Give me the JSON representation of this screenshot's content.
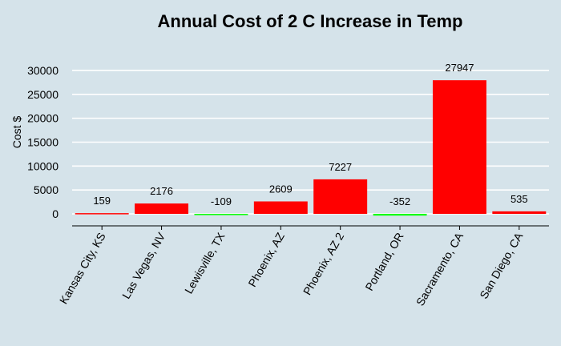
{
  "chart_data": {
    "type": "bar",
    "title": "Annual Cost of 2 C Increase in Temp",
    "xlabel": "",
    "ylabel": "Cost $",
    "categories": [
      "Kansas City, KS",
      "Las Vegas, NV",
      "Lewisville, TX",
      "Phoenix, AZ",
      "Phoenix, AZ 2",
      "Portland, OR",
      "Sacramento, CA",
      "San Diego, CA"
    ],
    "values": [
      159,
      2176,
      -109,
      2609,
      7227,
      -352,
      27947,
      535
    ],
    "ylim": [
      -2500,
      33000
    ],
    "yticks": [
      0,
      5000,
      10000,
      15000,
      20000,
      25000,
      30000
    ],
    "grid": "horizontal",
    "legend": "none",
    "colors": {
      "positive": "#ff0000",
      "negative": "#00ff00",
      "background": "#d5e3ea",
      "grid": "#ffffff"
    }
  }
}
